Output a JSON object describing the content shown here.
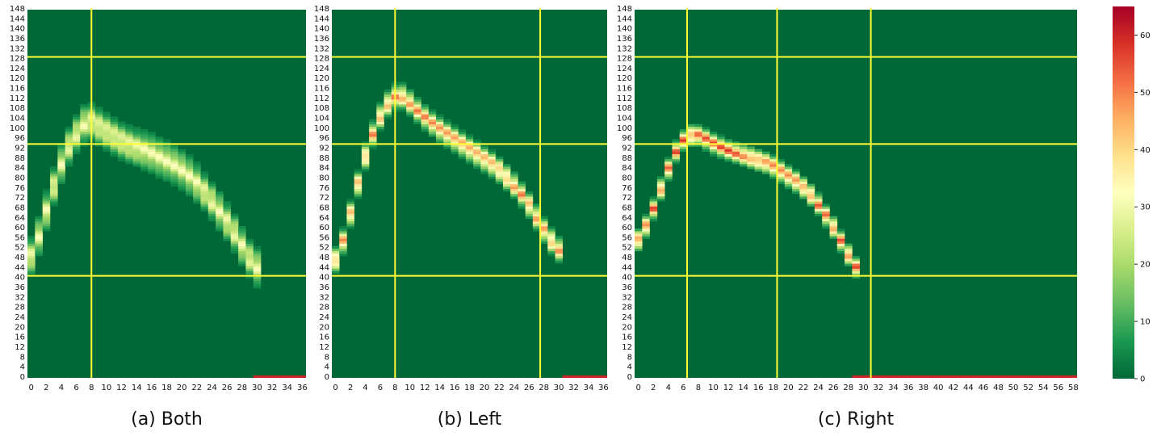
{
  "colors": {
    "background": "#ffffff",
    "colormap": [
      "#006837",
      "#1a9850",
      "#66bd63",
      "#a6d96a",
      "#d9ef8b",
      "#ffffbf",
      "#fee08b",
      "#fdae61",
      "#f46d43",
      "#d73027",
      "#a50026"
    ],
    "crosshair": "#ffff33"
  },
  "chart_data": [
    {
      "type": "heatmap",
      "caption": "(a) Both",
      "xlim": [
        0,
        37
      ],
      "ylim": [
        0,
        148
      ],
      "x_ticks": [
        0,
        2,
        4,
        6,
        8,
        10,
        12,
        14,
        16,
        18,
        20,
        22,
        24,
        26,
        28,
        30,
        32,
        34,
        36
      ],
      "y_ticks": [
        0,
        4,
        8,
        12,
        16,
        20,
        24,
        28,
        32,
        36,
        40,
        44,
        48,
        52,
        56,
        60,
        64,
        68,
        72,
        76,
        80,
        84,
        88,
        92,
        96,
        100,
        104,
        108,
        112,
        116,
        120,
        124,
        128,
        132,
        136,
        140,
        144,
        148
      ],
      "ridge_x": [
        0,
        1,
        2,
        3,
        4,
        5,
        6,
        7,
        8,
        9,
        10,
        12,
        14,
        16,
        18,
        20,
        22,
        24,
        26,
        28,
        29,
        30,
        31
      ],
      "ridge_y": [
        46,
        52,
        62,
        72,
        82,
        90,
        96,
        100,
        104,
        102,
        100,
        96,
        93,
        91,
        88,
        85,
        80,
        73,
        65,
        56,
        50,
        46,
        43
      ],
      "ridge_width": 11,
      "ridge_intensity": 33,
      "vlines": [
        8.5
      ],
      "hlines": [
        129,
        94,
        41
      ],
      "bottom_value": 60,
      "bottom_from": 30
    },
    {
      "type": "heatmap",
      "caption": "(b) Left",
      "xlim": [
        0,
        37
      ],
      "ylim": [
        0,
        148
      ],
      "x_ticks": [
        0,
        2,
        4,
        6,
        8,
        10,
        12,
        14,
        16,
        18,
        20,
        22,
        24,
        26,
        28,
        30,
        32,
        34,
        36
      ],
      "y_ticks": [
        0,
        4,
        8,
        12,
        16,
        20,
        24,
        28,
        32,
        36,
        40,
        44,
        48,
        52,
        56,
        60,
        64,
        68,
        72,
        76,
        80,
        84,
        88,
        92,
        96,
        100,
        104,
        108,
        112,
        116,
        120,
        124,
        128,
        132,
        136,
        140,
        144,
        148
      ],
      "ridge_x": [
        0,
        1,
        2,
        3,
        4,
        5,
        6,
        7,
        8,
        9,
        10,
        12,
        14,
        16,
        18,
        20,
        22,
        24,
        26,
        27,
        28,
        29,
        30,
        31
      ],
      "ridge_y": [
        45,
        50,
        60,
        72,
        84,
        94,
        102,
        108,
        112,
        114,
        112,
        106,
        101,
        97,
        93,
        89,
        85,
        79,
        72,
        67,
        62,
        57,
        53,
        50
      ],
      "ridge_width": 7,
      "ridge_intensity": 52,
      "vlines": [
        8.5,
        28
      ],
      "hlines": [
        129,
        94,
        41
      ],
      "bottom_value": 60,
      "bottom_from": 31
    },
    {
      "type": "heatmap",
      "caption": "(c) Right",
      "xlim": [
        0,
        59
      ],
      "ylim": [
        0,
        148
      ],
      "x_ticks": [
        0,
        2,
        4,
        6,
        8,
        10,
        12,
        14,
        16,
        18,
        20,
        22,
        24,
        26,
        28,
        30,
        32,
        34,
        36,
        38,
        40,
        42,
        44,
        46,
        48,
        50,
        52,
        54,
        56,
        58
      ],
      "y_ticks": [
        0,
        4,
        8,
        12,
        16,
        20,
        24,
        28,
        32,
        36,
        40,
        44,
        48,
        52,
        56,
        60,
        64,
        68,
        72,
        76,
        80,
        84,
        88,
        92,
        96,
        100,
        104,
        108,
        112,
        116,
        120,
        124,
        128,
        132,
        136,
        140,
        144,
        148
      ],
      "ridge_x": [
        0,
        1,
        2,
        3,
        4,
        5,
        6,
        7,
        8,
        9,
        10,
        12,
        14,
        16,
        18,
        20,
        22,
        24,
        26,
        27,
        28,
        29,
        30
      ],
      "ridge_y": [
        53,
        58,
        64,
        72,
        80,
        88,
        94,
        97,
        98,
        97,
        95,
        92,
        90,
        88,
        86,
        82,
        78,
        72,
        63,
        58,
        52,
        47,
        42
      ],
      "ridge_width": 6,
      "ridge_intensity": 58,
      "vlines": [
        7,
        19,
        31.5
      ],
      "hlines": [
        129,
        94,
        41
      ],
      "bottom_value": 60,
      "bottom_from": 29
    }
  ],
  "colorbar": {
    "min": 0,
    "max": 65,
    "ticks": [
      0,
      10,
      20,
      30,
      40,
      50,
      60
    ]
  }
}
